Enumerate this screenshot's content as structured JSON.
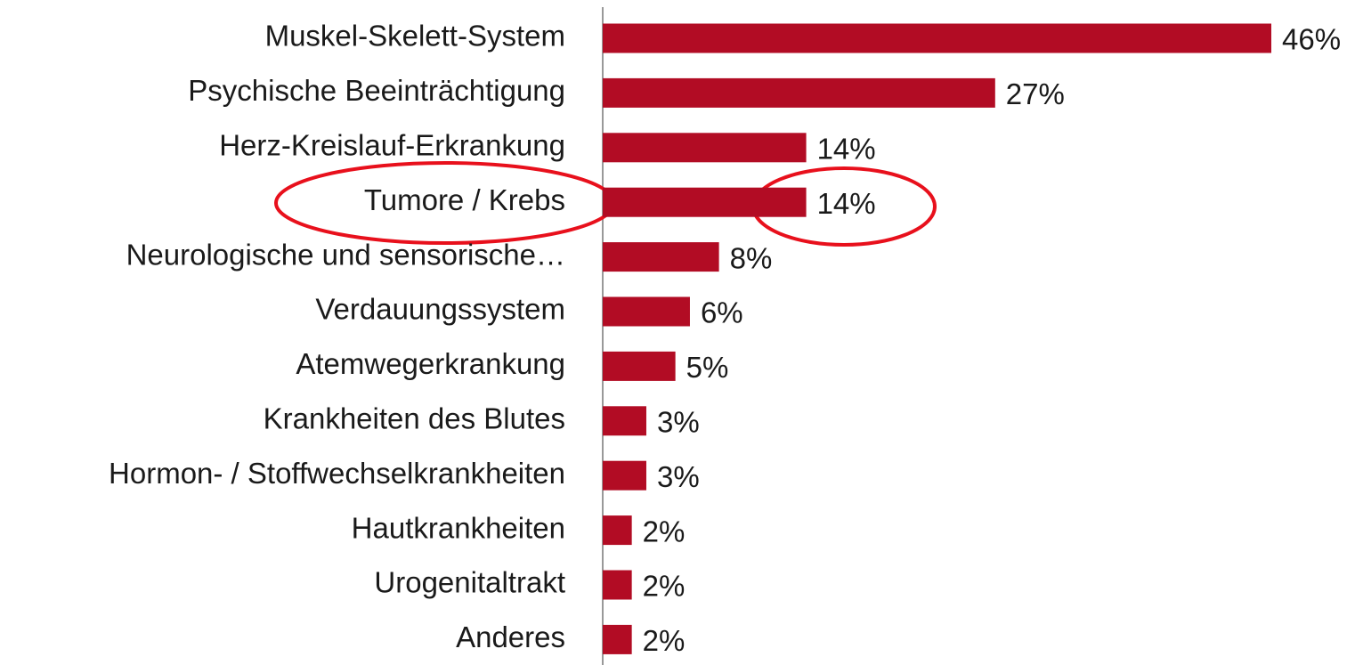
{
  "chart_data": {
    "type": "bar",
    "orientation": "horizontal",
    "categories": [
      "Muskel-Skelett-System",
      "Psychische Beeinträchtigung",
      "Herz-Kreislauf-Erkrankung",
      "Tumore / Krebs",
      "Neurologische und sensorische…",
      "Verdauungssystem",
      "Atemwegerkrankung",
      "Krankheiten des Blutes",
      "Hormon- / Stoffwechselkrankheiten",
      "Hautkrankheiten",
      "Urogenitaltrakt",
      "Anderes"
    ],
    "values": [
      46,
      27,
      14,
      14,
      8,
      6,
      5,
      3,
      3,
      2,
      2,
      2
    ],
    "value_labels": [
      "46%",
      "27%",
      "14%",
      "14%",
      "8%",
      "6%",
      "5%",
      "3%",
      "3%",
      "2%",
      "2%",
      "2%"
    ],
    "color": "#b20c24"
  }
}
